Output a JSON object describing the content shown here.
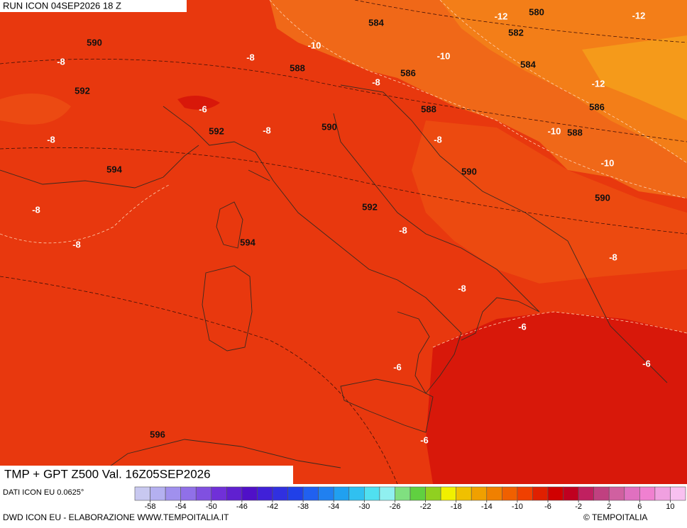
{
  "header": {
    "run": "RUN ICON 04SEP2026 18 Z"
  },
  "map": {
    "labels": [
      "590",
      "-8",
      "592",
      "-6",
      "-8",
      "588",
      "-10",
      "584",
      "-12",
      "580",
      "-12",
      "582",
      "-10",
      "584",
      "586",
      "-8",
      "-12",
      "586",
      "588",
      "590",
      "-8",
      "592",
      "-8",
      "-10",
      "588",
      "-8",
      "594",
      "-10",
      "590",
      "590",
      "592",
      "-8",
      "-8",
      "594",
      "-8",
      "-8",
      "-8",
      "-6",
      "-6",
      "-6",
      "596",
      "-6"
    ]
  },
  "legend": {
    "title": "TMP + GPT Z500 Val. 16Z05SEP2026",
    "lim": [
      -60,
      12
    ],
    "colors": [
      "#c8c8f0",
      "#b4b0f0",
      "#a090ee",
      "#9070e8",
      "#8050e0",
      "#7030d8",
      "#6020d0",
      "#5010c8",
      "#4020d8",
      "#3030e0",
      "#2040e8",
      "#2060f0",
      "#2080f0",
      "#20a0f0",
      "#30c0f0",
      "#50e0f0",
      "#90f0f0",
      "#80e080",
      "#60d040",
      "#90d020",
      "#f0f000",
      "#f0c000",
      "#f0a000",
      "#f08000",
      "#f06000",
      "#f04000",
      "#e02000",
      "#d00000",
      "#c00020",
      "#c02060",
      "#c04080",
      "#d060a0",
      "#e070c0",
      "#f080d0",
      "#f0a0e0",
      "#f8c0f0"
    ],
    "ticks": [
      -58,
      -54,
      -50,
      -46,
      -42,
      -38,
      -34,
      -30,
      -26,
      -22,
      -18,
      -14,
      -10,
      -6,
      -2,
      2,
      6,
      10
    ]
  },
  "footer": {
    "source": "DATI ICON EU 0.0625°",
    "credit": "DWD ICON EU - ELABORAZIONE WWW.TEMPOITALIA.IT",
    "brand": "© TEMPOITALIA"
  }
}
